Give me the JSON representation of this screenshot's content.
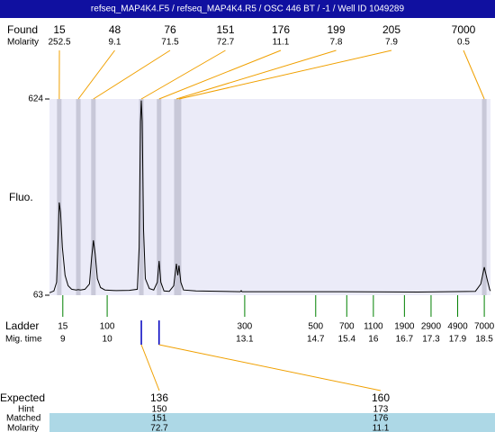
{
  "chart_data": {
    "type": "electropherogram",
    "title": "refseq_MAP4K4.F5 / refseq_MAP4K4.R5 / OSC 446 BT / -1 / Well ID 1049289",
    "found_label": "Found",
    "molarity_label": "Molarity",
    "y_label": "Fluo.",
    "ladder_label": "Ladder",
    "migtime_label": "Mig. time",
    "expected_label": "Expected",
    "hint_label": "Hint",
    "matched_label": "Matched",
    "matched_molarity_label": "Molarity",
    "found_sizes": [
      15,
      48,
      76,
      151,
      176,
      199,
      205,
      7000
    ],
    "found_molarity": [
      252.5,
      9.1,
      71.5,
      72.7,
      11.1,
      7.8,
      7.9,
      0.5
    ],
    "found_times": [
      8.92,
      9.35,
      9.69,
      10.77,
      11.17,
      11.56,
      11.62,
      18.5
    ],
    "ladder_sizes": [
      15,
      100,
      300,
      500,
      700,
      1100,
      1900,
      2900,
      4900,
      7000
    ],
    "ladder_times": [
      9,
      10,
      13.1,
      14.7,
      15.4,
      16,
      16.7,
      17.3,
      17.9,
      18.5
    ],
    "expected": [
      136,
      160
    ],
    "hint": [
      150,
      173
    ],
    "matched": [
      151,
      176
    ],
    "matched_molarity": [
      72.7,
      11.1
    ],
    "x": [
      8.7,
      8.8,
      8.86,
      8.9,
      8.92,
      8.95,
      8.99,
      9.05,
      9.12,
      9.2,
      9.3,
      9.35,
      9.4,
      9.5,
      9.6,
      9.65,
      9.69,
      9.73,
      9.78,
      9.85,
      9.95,
      10.2,
      10.5,
      10.68,
      10.72,
      10.75,
      10.77,
      10.79,
      10.82,
      10.86,
      10.95,
      11.05,
      11.13,
      11.17,
      11.21,
      11.28,
      11.4,
      11.5,
      11.56,
      11.59,
      11.62,
      11.66,
      11.72,
      12.0,
      13.0,
      13.02,
      13.04,
      15,
      17,
      18.3,
      18.42,
      18.5,
      18.56,
      18.62,
      18.64
    ],
    "values": [
      70,
      75,
      100,
      250,
      328,
      300,
      200,
      120,
      90,
      80,
      78,
      79,
      78,
      80,
      95,
      170,
      220,
      180,
      110,
      85,
      78,
      76,
      77,
      80,
      200,
      560,
      620,
      560,
      250,
      110,
      82,
      78,
      100,
      161,
      100,
      75,
      74,
      90,
      153,
      120,
      148,
      100,
      78,
      75,
      73,
      76,
      73,
      73,
      72,
      74,
      95,
      143,
      110,
      80,
      75
    ],
    "color": "#000000",
    "xlim": [
      8.7,
      18.64
    ],
    "ylim": [
      63,
      624
    ],
    "yticks": [
      63,
      624
    ]
  }
}
